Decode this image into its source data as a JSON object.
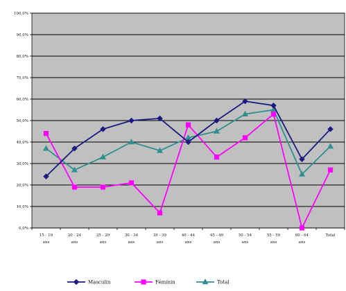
{
  "chart_data": {
    "type": "line",
    "categories": [
      [
        "15 - 19",
        "ans"
      ],
      [
        "20 - 24",
        "ans"
      ],
      [
        "25 - 29",
        "ans"
      ],
      [
        "30 - 34",
        "ans"
      ],
      [
        "35 - 39",
        "ans"
      ],
      [
        "40 - 44",
        "ans"
      ],
      [
        "45 - 49",
        "ans"
      ],
      [
        "50 - 54",
        "ans"
      ],
      [
        "55 - 59",
        "ans"
      ],
      [
        "60 - 64",
        "ans"
      ],
      [
        "Total",
        ""
      ]
    ],
    "y_ticks": [
      "0,0%",
      "10,0%",
      "20,0%",
      "30,0%",
      "40,0%",
      "50,0%",
      "60,0%",
      "70,0%",
      "80,0%",
      "90,0%",
      "100,0%"
    ],
    "ylim": [
      0,
      100
    ],
    "grid": true,
    "legend_position": "bottom",
    "series": [
      {
        "name": "Masculin",
        "color": "#1a1a80",
        "marker": "diamond",
        "values": [
          24,
          37,
          46,
          50,
          51,
          40,
          50,
          59,
          57,
          32,
          46
        ]
      },
      {
        "name": "Féminin",
        "color": "#ff00ff",
        "marker": "square",
        "values": [
          44,
          19,
          19,
          21,
          7,
          48,
          33,
          42,
          53,
          0,
          27
        ]
      },
      {
        "name": "Total",
        "color": "#2f8f8f",
        "marker": "triangle",
        "values": [
          37,
          27,
          33,
          40,
          36,
          42,
          45,
          53,
          55,
          25,
          38
        ]
      }
    ]
  }
}
